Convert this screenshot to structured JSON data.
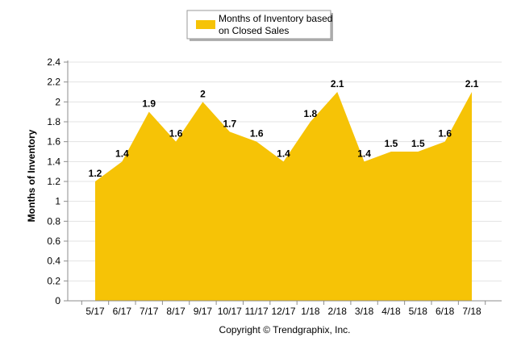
{
  "colors": {
    "area": "#F6C306",
    "grid": "#E3E3E3",
    "axis": "#8C8C8C"
  },
  "legend": {
    "label_line1": "Months of Inventory based",
    "label_line2": "on Closed Sales"
  },
  "footer": "Copyright © Trendgraphix, Inc.",
  "chart_data": {
    "type": "area",
    "title": "",
    "ylabel": "Months of Inventory",
    "xlabel": "",
    "categories": [
      "5/17",
      "6/17",
      "7/17",
      "8/17",
      "9/17",
      "10/17",
      "11/17",
      "12/17",
      "1/18",
      "2/18",
      "3/18",
      "4/18",
      "5/18",
      "6/18",
      "7/18"
    ],
    "series": [
      {
        "name": "Months of Inventory based on Closed Sales",
        "values": [
          1.2,
          1.4,
          1.9,
          1.6,
          2,
          1.7,
          1.6,
          1.4,
          1.8,
          2.1,
          1.4,
          1.5,
          1.5,
          1.6,
          2.1
        ],
        "labels": [
          "1.2",
          "1.4",
          "1.9",
          "1.6",
          "2",
          "1.7",
          "1.6",
          "1.4",
          "1.8",
          "2.1",
          "1.4",
          "1.5",
          "1.5",
          "1.6",
          "2.1"
        ]
      }
    ],
    "ylim": [
      0,
      2.4
    ],
    "yticks": [
      "0",
      "0.2",
      "0.4",
      "0.6",
      "0.8",
      "1",
      "1.2",
      "1.4",
      "1.6",
      "1.8",
      "2",
      "2.2",
      "2.4"
    ],
    "grid": true,
    "legend_position": "top-center"
  }
}
